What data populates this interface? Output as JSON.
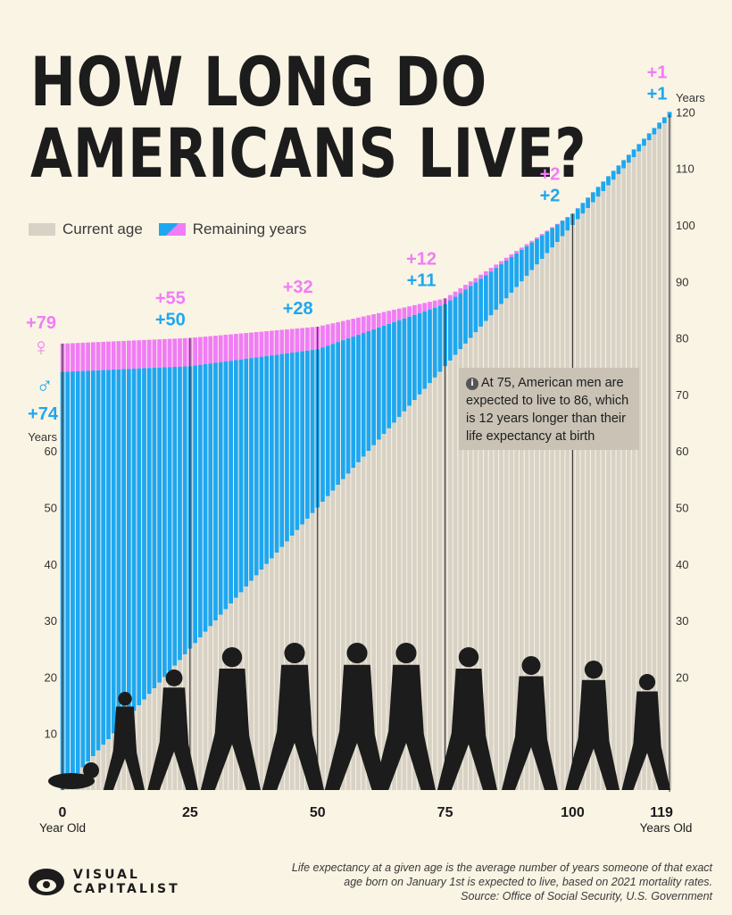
{
  "title": {
    "line1": "HOW LONG DO",
    "line2": "AMERICANS LIVE?"
  },
  "legend": {
    "current_age": "Current age",
    "remaining_years": "Remaining years"
  },
  "note": {
    "icon": "info-icon",
    "text": "At 75, American men are expected to live to 86, which is 12 years longer than their life expectancy at birth"
  },
  "footer": {
    "line1": "Life expectancy at a given age is the average number of years someone of that exact",
    "line2": "age born on January 1st is expected to live, based on 2021 mortality rates.",
    "line3": "Source: Office of Social Security, U.S. Government"
  },
  "logo": {
    "line1": "VISUAL",
    "line2": "CAPITALIST"
  },
  "colors": {
    "male": "#1ea7f0",
    "female": "#f07df5",
    "age": "#d8d2c6",
    "text": "#1c1c1c"
  },
  "chart_data": {
    "type": "bar",
    "x_unit": "age (years)",
    "x_min": 0,
    "x_max": 119,
    "ylim": [
      0,
      120
    ],
    "yticks": [
      10,
      20,
      30,
      40,
      50,
      60,
      70,
      80,
      90,
      100,
      110,
      120
    ],
    "left_axis_label": "Years",
    "right_axis_label": "Years",
    "left_yticks": [
      10,
      20,
      30,
      40,
      50,
      60
    ],
    "right_yticks": [
      20,
      30,
      40,
      50,
      60,
      70,
      80,
      90,
      100,
      110,
      120
    ],
    "xticks": [
      "0",
      "25",
      "50",
      "75",
      "100",
      "119"
    ],
    "x_start_caption": "Year Old",
    "x_end_caption": "Years Old",
    "series": [
      {
        "name": "Current age",
        "x": [
          0,
          25,
          50,
          75,
          100,
          119
        ],
        "values": [
          0,
          25,
          50,
          75,
          100,
          119
        ]
      },
      {
        "x": [
          0,
          25,
          50,
          75,
          100,
          119
        ],
        "remaining": [
          74,
          50,
          28,
          11,
          2,
          1
        ],
        "total": [
          74,
          75,
          78,
          86,
          102,
          120
        ]
      },
      {
        "x": [
          0,
          25,
          50,
          75,
          100,
          119
        ],
        "remaining": [
          79,
          55,
          32,
          12,
          2,
          1
        ],
        "total": [
          79,
          80,
          82,
          87,
          102,
          120
        ]
      }
    ],
    "callouts": [
      {
        "age": 0,
        "female": "+79",
        "male": "+74",
        "female_symbol": "♀",
        "male_symbol": "♂"
      },
      {
        "age": 25,
        "female": "+55",
        "male": "+50"
      },
      {
        "age": 50,
        "female": "+32",
        "male": "+28"
      },
      {
        "age": 75,
        "female": "+12",
        "male": "+11"
      },
      {
        "age": 100,
        "female": "+2",
        "male": "+2"
      },
      {
        "age": 119,
        "female": "+1",
        "male": "+1"
      }
    ]
  }
}
